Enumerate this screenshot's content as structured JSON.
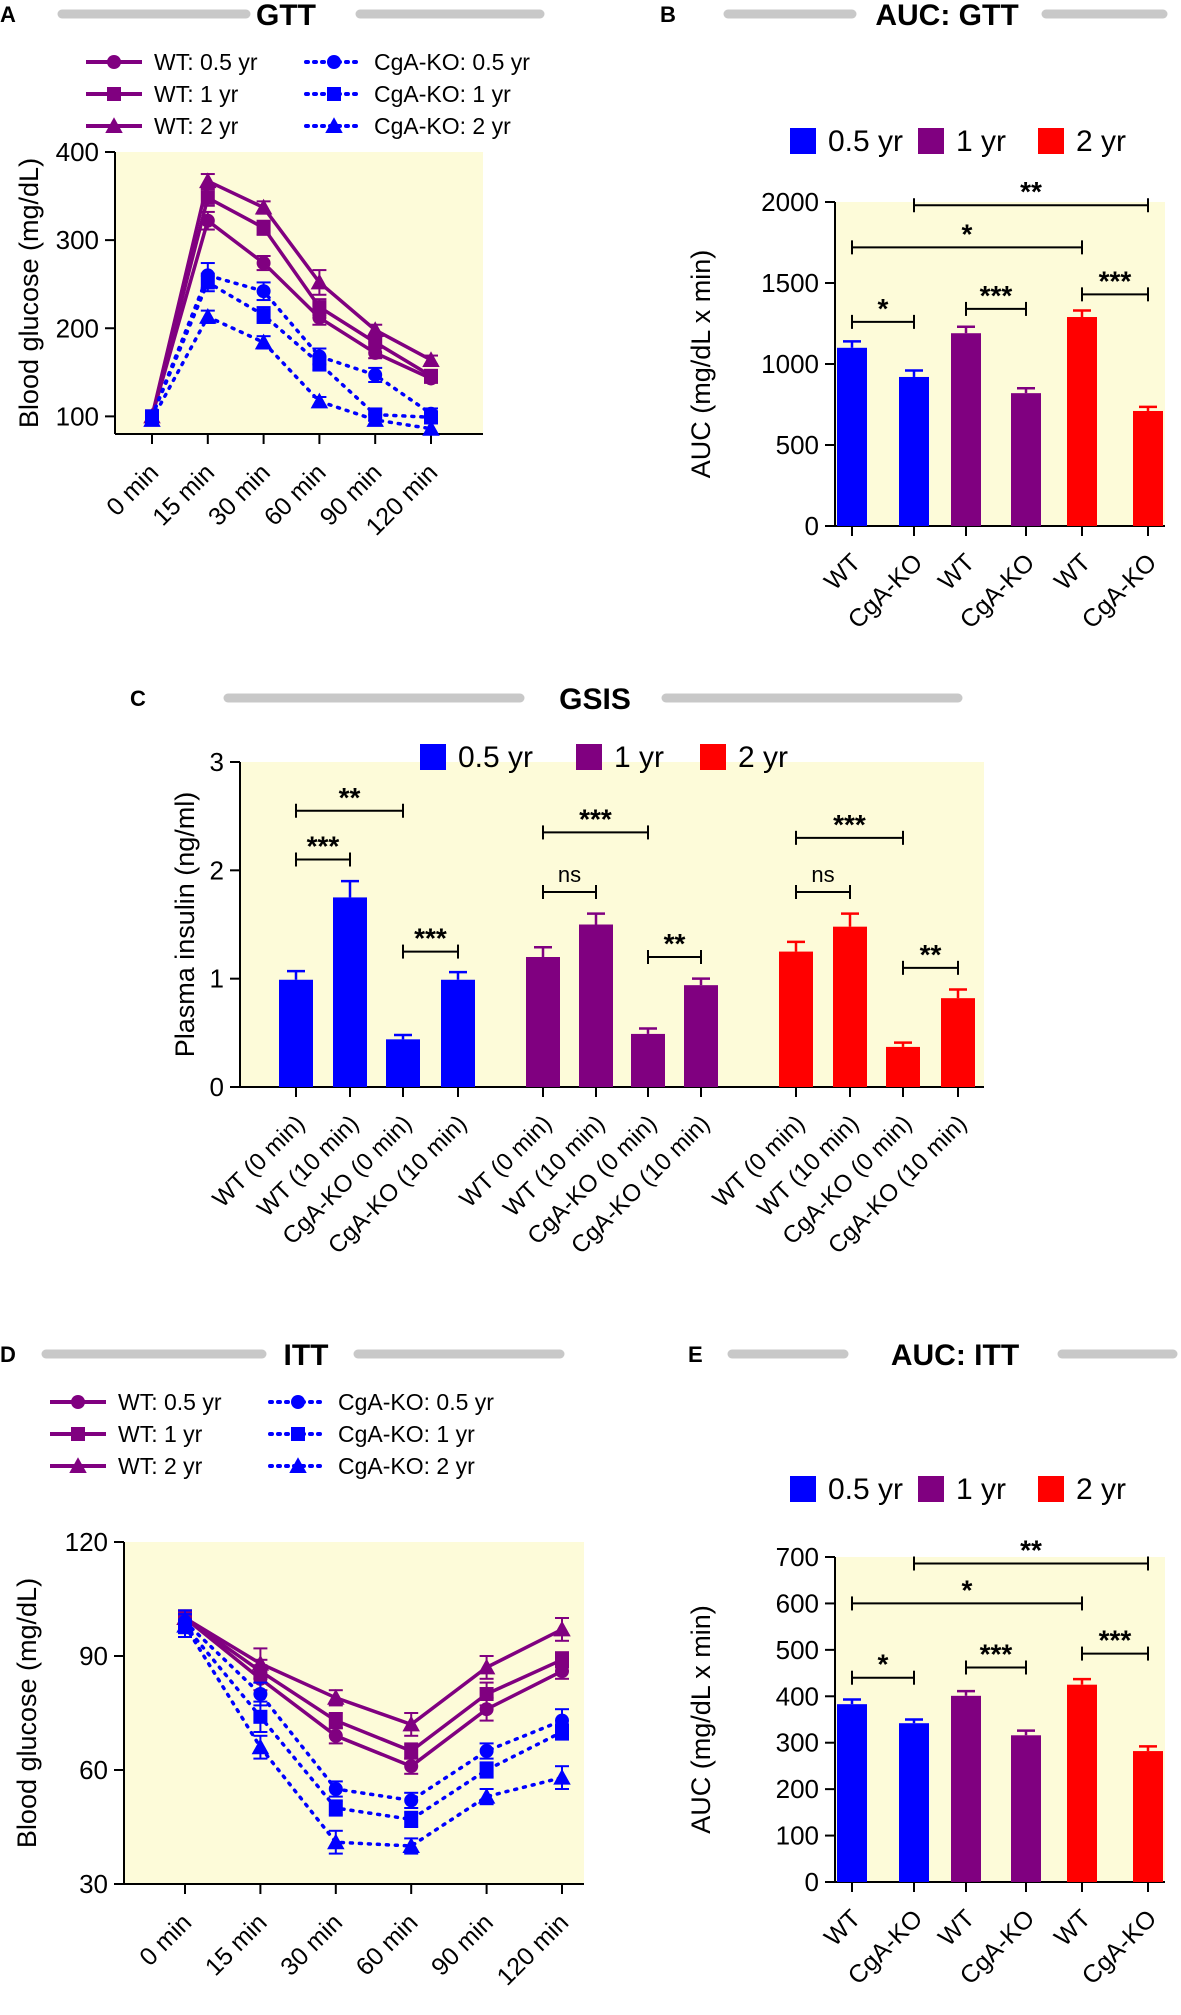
{
  "colors": {
    "wt": "#800080",
    "ko": "#0000ff",
    "c05": "#0000ff",
    "c1": "#800080",
    "c2": "#ff0000",
    "bg": "#fdfbd9",
    "title_bar": "#c8c8c8"
  },
  "chart_data": [
    {
      "id": "A",
      "type": "line",
      "title": "GTT",
      "ylabel": "Blood glucose (mg/dL)",
      "categories": [
        "0 min",
        "15 min",
        "30 min",
        "60 min",
        "90 min",
        "120 min"
      ],
      "ylim": [
        80,
        400
      ],
      "yticks": [
        100,
        200,
        300,
        400
      ],
      "series": [
        {
          "name": "WT: 0.5 yr",
          "group": "wt",
          "marker": "circle",
          "values": [
            100,
            322,
            274,
            212,
            172,
            143
          ],
          "errors": [
            5,
            10,
            8,
            8,
            6,
            5
          ]
        },
        {
          "name": "WT: 1 yr",
          "group": "wt",
          "marker": "square",
          "values": [
            100,
            348,
            314,
            224,
            184,
            146
          ],
          "errors": [
            5,
            9,
            8,
            9,
            6,
            6
          ]
        },
        {
          "name": "WT: 2 yr",
          "group": "wt",
          "marker": "triangle",
          "values": [
            100,
            367,
            337,
            252,
            198,
            164
          ],
          "errors": [
            5,
            8,
            7,
            14,
            6,
            5
          ]
        },
        {
          "name": "CgA-KO: 0.5 yr",
          "group": "ko",
          "marker": "circle",
          "values": [
            100,
            260,
            242,
            168,
            147,
            103
          ],
          "errors": [
            5,
            14,
            10,
            9,
            8,
            6
          ]
        },
        {
          "name": "CgA-KO: 1 yr",
          "group": "ko",
          "marker": "square",
          "values": [
            100,
            252,
            215,
            160,
            102,
            99
          ],
          "errors": [
            5,
            10,
            9,
            8,
            7,
            5
          ]
        },
        {
          "name": "CgA-KO: 2 yr",
          "group": "ko",
          "marker": "triangle",
          "values": [
            96,
            213,
            184,
            117,
            96,
            86
          ],
          "errors": [
            4,
            7,
            7,
            5,
            6,
            6
          ]
        }
      ]
    },
    {
      "id": "B",
      "type": "bar",
      "title": "AUC: GTT",
      "ylabel": "AUC (mg/dL x min)",
      "ylim": [
        0,
        2000
      ],
      "yticks": [
        0,
        500,
        1000,
        1500,
        2000
      ],
      "legend": [
        {
          "label": "0.5 yr",
          "color": "c05"
        },
        {
          "label": "1 yr",
          "color": "c1"
        },
        {
          "label": "2 yr",
          "color": "c2"
        }
      ],
      "bars": [
        {
          "category": "WT",
          "color": "c05",
          "value": 1100,
          "error": 40
        },
        {
          "category": "CgA-KO",
          "color": "c05",
          "value": 920,
          "error": 40
        },
        {
          "category": "WT",
          "color": "c1",
          "value": 1190,
          "error": 40
        },
        {
          "category": "CgA-KO",
          "color": "c1",
          "value": 820,
          "error": 30
        },
        {
          "category": "WT",
          "color": "c2",
          "value": 1290,
          "error": 40
        },
        {
          "category": "CgA-KO",
          "color": "c2",
          "value": 710,
          "error": 25
        }
      ],
      "significance": [
        {
          "from": 0,
          "to": 1,
          "label": "*",
          "level": 1260
        },
        {
          "from": 2,
          "to": 3,
          "label": "***",
          "level": 1340
        },
        {
          "from": 4,
          "to": 5,
          "label": "***",
          "level": 1430
        },
        {
          "from": 0,
          "to": 4,
          "label": "*",
          "level": 1720
        },
        {
          "from": 1,
          "to": 5,
          "label": "**",
          "level": 1980
        }
      ]
    },
    {
      "id": "C",
      "type": "bar",
      "title": "GSIS",
      "ylabel": "Plasma insulin (ng/ml)",
      "ylim": [
        0,
        3
      ],
      "yticks": [
        0,
        1,
        2,
        3
      ],
      "legend": [
        {
          "label": "0.5 yr",
          "color": "c05"
        },
        {
          "label": "1 yr",
          "color": "c1"
        },
        {
          "label": "2 yr",
          "color": "c2"
        }
      ],
      "bars": [
        {
          "category": "WT (0 min)",
          "color": "c05",
          "value": 0.99,
          "error": 0.08
        },
        {
          "category": "WT (10 min)",
          "color": "c05",
          "value": 1.75,
          "error": 0.15
        },
        {
          "category": "CgA-KO (0 min)",
          "color": "c05",
          "value": 0.44,
          "error": 0.04
        },
        {
          "category": "CgA-KO (10 min)",
          "color": "c05",
          "value": 0.99,
          "error": 0.07
        },
        {
          "category": "WT (0 min)",
          "color": "c1",
          "value": 1.2,
          "error": 0.09
        },
        {
          "category": "WT (10 min)",
          "color": "c1",
          "value": 1.5,
          "error": 0.1
        },
        {
          "category": "CgA-KO (0 min)",
          "color": "c1",
          "value": 0.49,
          "error": 0.05
        },
        {
          "category": "CgA-KO (10 min)",
          "color": "c1",
          "value": 0.94,
          "error": 0.06
        },
        {
          "category": "WT (0 min)",
          "color": "c2",
          "value": 1.25,
          "error": 0.09
        },
        {
          "category": "WT (10 min)",
          "color": "c2",
          "value": 1.48,
          "error": 0.12
        },
        {
          "category": "CgA-KO (0 min)",
          "color": "c2",
          "value": 0.37,
          "error": 0.04
        },
        {
          "category": "CgA-KO (10 min)",
          "color": "c2",
          "value": 0.82,
          "error": 0.08
        }
      ],
      "significance": [
        {
          "from": 0,
          "to": 1,
          "label": "***",
          "level": 2.1
        },
        {
          "from": 0,
          "to": 2,
          "label": "**",
          "level": 2.55
        },
        {
          "from": 2,
          "to": 3,
          "label": "***",
          "level": 1.25
        },
        {
          "from": 4,
          "to": 5,
          "label": "ns",
          "level": 1.8
        },
        {
          "from": 4,
          "to": 6,
          "label": "***",
          "level": 2.35
        },
        {
          "from": 6,
          "to": 7,
          "label": "**",
          "level": 1.2
        },
        {
          "from": 8,
          "to": 9,
          "label": "ns",
          "level": 1.8
        },
        {
          "from": 8,
          "to": 10,
          "label": "***",
          "level": 2.3
        },
        {
          "from": 10,
          "to": 11,
          "label": "**",
          "level": 1.1
        }
      ]
    },
    {
      "id": "D",
      "type": "line",
      "title": "ITT",
      "ylabel": "Blood glucose (mg/dL)",
      "categories": [
        "0 min",
        "15 min",
        "30 min",
        "60 min",
        "90 min",
        "120 min"
      ],
      "ylim": [
        30,
        120
      ],
      "yticks": [
        30,
        60,
        90,
        120
      ],
      "series": [
        {
          "name": "WT: 0.5 yr",
          "group": "wt",
          "marker": "circle",
          "values": [
            100,
            84,
            69,
            61,
            76,
            86
          ],
          "errors": [
            2,
            3,
            2,
            2,
            3,
            2
          ]
        },
        {
          "name": "WT: 1 yr",
          "group": "wt",
          "marker": "square",
          "values": [
            100,
            86,
            73,
            65,
            80,
            89
          ],
          "errors": [
            2,
            3,
            2,
            2,
            3,
            2
          ]
        },
        {
          "name": "WT: 2 yr",
          "group": "wt",
          "marker": "triangle",
          "values": [
            100,
            88,
            79,
            72,
            87,
            97
          ],
          "errors": [
            2,
            4,
            2,
            3,
            3,
            3
          ]
        },
        {
          "name": "CgA-KO: 0.5 yr",
          "group": "ko",
          "marker": "circle",
          "values": [
            99,
            80,
            55,
            52,
            65,
            73
          ],
          "errors": [
            3,
            3,
            2,
            2,
            2,
            3
          ]
        },
        {
          "name": "CgA-KO: 1 yr",
          "group": "ko",
          "marker": "square",
          "values": [
            98,
            74,
            50,
            47,
            60,
            70
          ],
          "errors": [
            3,
            4,
            2,
            2,
            2,
            2
          ]
        },
        {
          "name": "CgA-KO: 2 yr",
          "group": "ko",
          "marker": "triangle",
          "values": [
            98,
            66,
            41,
            40,
            53,
            58
          ],
          "errors": [
            3,
            3,
            3,
            2,
            2,
            3
          ]
        }
      ]
    },
    {
      "id": "E",
      "type": "bar",
      "title": "AUC: ITT",
      "ylabel": "AUC (mg/dL x min)",
      "ylim": [
        0,
        700
      ],
      "yticks": [
        0,
        100,
        200,
        300,
        400,
        500,
        600,
        700
      ],
      "legend": [
        {
          "label": "0.5 yr",
          "color": "c05"
        },
        {
          "label": "1 yr",
          "color": "c1"
        },
        {
          "label": "2 yr",
          "color": "c2"
        }
      ],
      "bars": [
        {
          "category": "WT",
          "color": "c05",
          "value": 383,
          "error": 10
        },
        {
          "category": "CgA-KO",
          "color": "c05",
          "value": 342,
          "error": 8
        },
        {
          "category": "WT",
          "color": "c1",
          "value": 401,
          "error": 10
        },
        {
          "category": "CgA-KO",
          "color": "c1",
          "value": 316,
          "error": 10
        },
        {
          "category": "WT",
          "color": "c2",
          "value": 425,
          "error": 12
        },
        {
          "category": "CgA-KO",
          "color": "c2",
          "value": 282,
          "error": 10
        }
      ],
      "significance": [
        {
          "from": 0,
          "to": 1,
          "label": "*",
          "level": 440
        },
        {
          "from": 2,
          "to": 3,
          "label": "***",
          "level": 462
        },
        {
          "from": 4,
          "to": 5,
          "label": "***",
          "level": 492
        },
        {
          "from": 0,
          "to": 4,
          "label": "*",
          "level": 600
        },
        {
          "from": 1,
          "to": 5,
          "label": "**",
          "level": 686
        }
      ]
    }
  ]
}
